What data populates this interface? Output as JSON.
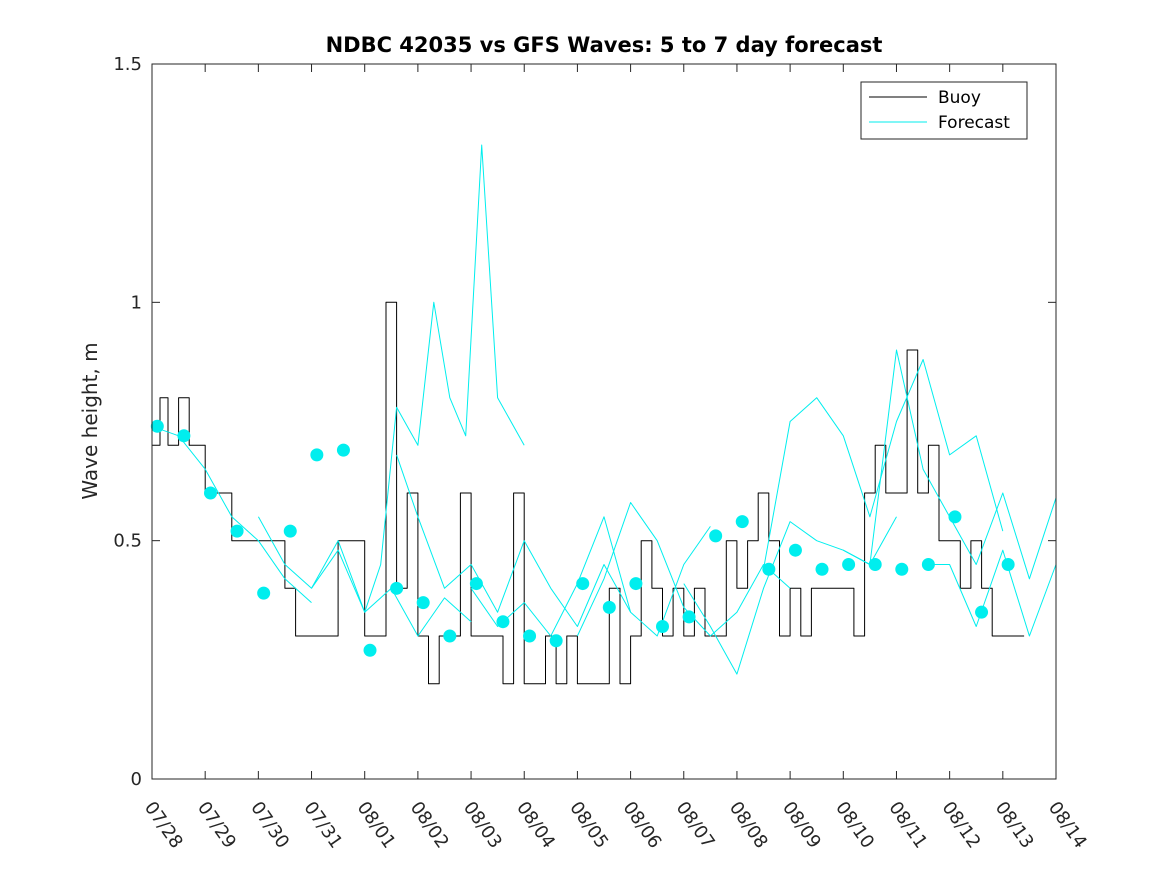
{
  "chart_data": {
    "type": "line",
    "title": "NDBC 42035 vs GFS Waves: 5 to 7 day forecast",
    "xlabel": "",
    "ylabel": "Wave height, m",
    "xlim": [
      0,
      17
    ],
    "ylim": [
      0,
      1.5
    ],
    "x_ticks": [
      "07/28",
      "07/29",
      "07/30",
      "07/31",
      "08/01",
      "08/02",
      "08/03",
      "08/04",
      "08/05",
      "08/06",
      "08/07",
      "08/08",
      "08/09",
      "08/10",
      "08/11",
      "08/12",
      "08/13",
      "08/14"
    ],
    "y_ticks": [
      {
        "value": 0,
        "label": "0"
      },
      {
        "value": 0.5,
        "label": "0.5"
      },
      {
        "value": 1,
        "label": "1"
      },
      {
        "value": 1.5,
        "label": "1.5"
      }
    ],
    "legend": {
      "position": "top-right",
      "entries": [
        {
          "label": "Buoy",
          "color": "#000000"
        },
        {
          "label": "Forecast",
          "color": "#00eeee"
        }
      ]
    },
    "colors": {
      "buoy": "#000000",
      "forecast": "#00eeee",
      "markers": "#00eeee"
    },
    "series": [
      {
        "name": "Buoy",
        "x": [
          0,
          0.15,
          0.3,
          0.5,
          0.7,
          1.0,
          1.5,
          2.0,
          2.5,
          2.7,
          3.0,
          3.5,
          3.7,
          4.0,
          4.2,
          4.4,
          4.6,
          4.8,
          5.0,
          5.2,
          5.4,
          5.6,
          5.8,
          6.0,
          6.2,
          6.4,
          6.6,
          6.8,
          7.0,
          7.2,
          7.4,
          7.6,
          7.8,
          8.0,
          8.2,
          8.4,
          8.6,
          8.8,
          9.0,
          9.2,
          9.4,
          9.6,
          9.8,
          10.0,
          10.2,
          10.4,
          10.6,
          10.8,
          11.0,
          11.2,
          11.4,
          11.6,
          11.8,
          12.0,
          12.2,
          12.4,
          12.6,
          12.8,
          13.0,
          13.2,
          13.4,
          13.6,
          13.8,
          14.0,
          14.2,
          14.4,
          14.6,
          14.8,
          15.0,
          15.2,
          15.4,
          15.6,
          15.8,
          16.0,
          16.2,
          16.4
        ],
        "y": [
          0.7,
          0.8,
          0.7,
          0.8,
          0.7,
          0.6,
          0.5,
          0.5,
          0.4,
          0.3,
          0.3,
          0.5,
          0.5,
          0.3,
          0.3,
          1.0,
          0.4,
          0.6,
          0.3,
          0.2,
          0.3,
          0.3,
          0.6,
          0.3,
          0.3,
          0.3,
          0.2,
          0.6,
          0.2,
          0.2,
          0.3,
          0.2,
          0.3,
          0.2,
          0.2,
          0.2,
          0.4,
          0.2,
          0.3,
          0.5,
          0.4,
          0.3,
          0.4,
          0.3,
          0.4,
          0.3,
          0.3,
          0.5,
          0.4,
          0.5,
          0.6,
          0.5,
          0.3,
          0.4,
          0.3,
          0.4,
          0.4,
          0.4,
          0.4,
          0.3,
          0.6,
          0.7,
          0.6,
          0.6,
          0.9,
          0.6,
          0.7,
          0.5,
          0.5,
          0.4,
          0.5,
          0.4,
          0.3,
          0.3,
          0.3,
          0.3
        ]
      },
      {
        "name": "Forecast",
        "x": [
          0,
          0.5,
          1.0,
          1.5,
          2.0,
          2.5,
          3.0
        ],
        "y": [
          0.74,
          0.72,
          0.65,
          0.55,
          0.5,
          0.42,
          0.37
        ]
      },
      {
        "name": "Forecast",
        "x": [
          2.0,
          2.5,
          3.0,
          3.5,
          4.0,
          4.5,
          5.0,
          5.5,
          6.0
        ],
        "y": [
          0.55,
          0.45,
          0.4,
          0.48,
          0.35,
          0.4,
          0.3,
          0.38,
          0.33
        ]
      },
      {
        "name": "Forecast",
        "x": [
          3.0,
          3.5,
          4.0,
          4.3,
          4.6,
          5.0,
          5.3,
          5.6,
          5.9,
          6.2,
          6.5,
          7.0
        ],
        "y": [
          0.4,
          0.5,
          0.35,
          0.45,
          0.78,
          0.7,
          1.0,
          0.8,
          0.72,
          1.33,
          0.8,
          0.7
        ]
      },
      {
        "name": "Forecast",
        "x": [
          4.6,
          5.0,
          5.5,
          6.0,
          6.5,
          7.0,
          7.5,
          8.0,
          8.5,
          9.0
        ],
        "y": [
          0.68,
          0.55,
          0.4,
          0.45,
          0.35,
          0.5,
          0.4,
          0.32,
          0.45,
          0.35
        ]
      },
      {
        "name": "Forecast",
        "x": [
          6.0,
          6.5,
          7.0,
          7.5,
          8.0,
          8.5,
          9.0,
          9.5,
          10.0,
          10.5
        ],
        "y": [
          0.4,
          0.32,
          0.37,
          0.3,
          0.41,
          0.55,
          0.35,
          0.3,
          0.45,
          0.53
        ]
      },
      {
        "name": "Forecast",
        "x": [
          8.0,
          8.5,
          9.0,
          9.5,
          10.0,
          10.5,
          11.0,
          11.5,
          12.0
        ],
        "y": [
          0.3,
          0.42,
          0.58,
          0.5,
          0.36,
          0.3,
          0.35,
          0.45,
          0.4
        ]
      },
      {
        "name": "Forecast",
        "x": [
          10.0,
          10.5,
          11.0,
          11.5,
          12.0,
          12.5,
          13.0,
          13.5,
          14.0
        ],
        "y": [
          0.41,
          0.32,
          0.22,
          0.4,
          0.54,
          0.5,
          0.48,
          0.45,
          0.55
        ]
      },
      {
        "name": "Forecast",
        "x": [
          11.5,
          12.0,
          12.5,
          13.0,
          13.5,
          14.0,
          14.5,
          15.0,
          15.5,
          16.0
        ],
        "y": [
          0.44,
          0.75,
          0.8,
          0.72,
          0.55,
          0.75,
          0.88,
          0.68,
          0.72,
          0.52
        ]
      },
      {
        "name": "Forecast",
        "x": [
          13.0,
          13.5,
          14.0,
          14.5,
          15.0,
          15.5,
          16.0,
          16.5,
          17.0
        ],
        "y": [
          0.48,
          0.45,
          0.9,
          0.65,
          0.55,
          0.45,
          0.6,
          0.42,
          0.59
        ]
      },
      {
        "name": "Forecast",
        "x": [
          14.5,
          15.0,
          15.5,
          16.0,
          16.5,
          17.0
        ],
        "y": [
          0.45,
          0.45,
          0.32,
          0.48,
          0.3,
          0.45
        ]
      }
    ],
    "markers": {
      "name": "Forecast",
      "x": [
        0.1,
        0.6,
        1.1,
        1.6,
        2.1,
        2.6,
        3.1,
        3.6,
        4.1,
        4.6,
        5.1,
        5.6,
        6.1,
        6.6,
        7.1,
        7.6,
        8.1,
        8.6,
        9.1,
        9.6,
        10.1,
        10.6,
        11.1,
        11.6,
        12.1,
        12.6,
        13.1,
        13.6,
        14.1,
        14.6,
        15.1,
        15.6,
        16.1
      ],
      "y": [
        0.74,
        0.72,
        0.6,
        0.52,
        0.39,
        0.52,
        0.68,
        0.69,
        0.27,
        0.4,
        0.37,
        0.3,
        0.41,
        0.33,
        0.3,
        0.29,
        0.41,
        0.36,
        0.41,
        0.32,
        0.34,
        0.51,
        0.54,
        0.44,
        0.48,
        0.44,
        0.45,
        0.45,
        0.44,
        0.45,
        0.55,
        0.35,
        0.45
      ]
    }
  }
}
